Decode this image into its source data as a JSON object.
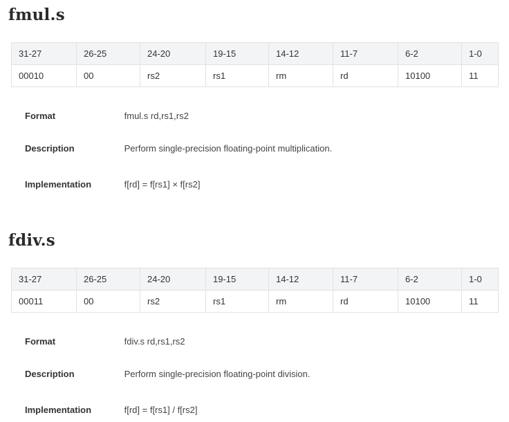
{
  "instructions": [
    {
      "title": "fmul.s",
      "encoding": {
        "headers": [
          "31-27",
          "26-25",
          "24-20",
          "19-15",
          "14-12",
          "11-7",
          "6-2",
          "1-0"
        ],
        "values": [
          "00010",
          "00",
          "rs2",
          "rs1",
          "rm",
          "rd",
          "10100",
          "11"
        ]
      },
      "details": {
        "format_label": "Format",
        "format": "fmul.s rd,rs1,rs2",
        "description_label": "Description",
        "description": "Perform single-precision floating-point multiplication.",
        "implementation_label": "Implementation",
        "implementation": "f[rd] = f[rs1] × f[rs2]"
      }
    },
    {
      "title": "fdiv.s",
      "encoding": {
        "headers": [
          "31-27",
          "26-25",
          "24-20",
          "19-15",
          "14-12",
          "11-7",
          "6-2",
          "1-0"
        ],
        "values": [
          "00011",
          "00",
          "rs2",
          "rs1",
          "rm",
          "rd",
          "10100",
          "11"
        ]
      },
      "details": {
        "format_label": "Format",
        "format": "fdiv.s rd,rs1,rs2",
        "description_label": "Description",
        "description": "Perform single-precision floating-point division.",
        "implementation_label": "Implementation",
        "implementation": "f[rd] = f[rs1] / f[rs2]"
      }
    }
  ]
}
